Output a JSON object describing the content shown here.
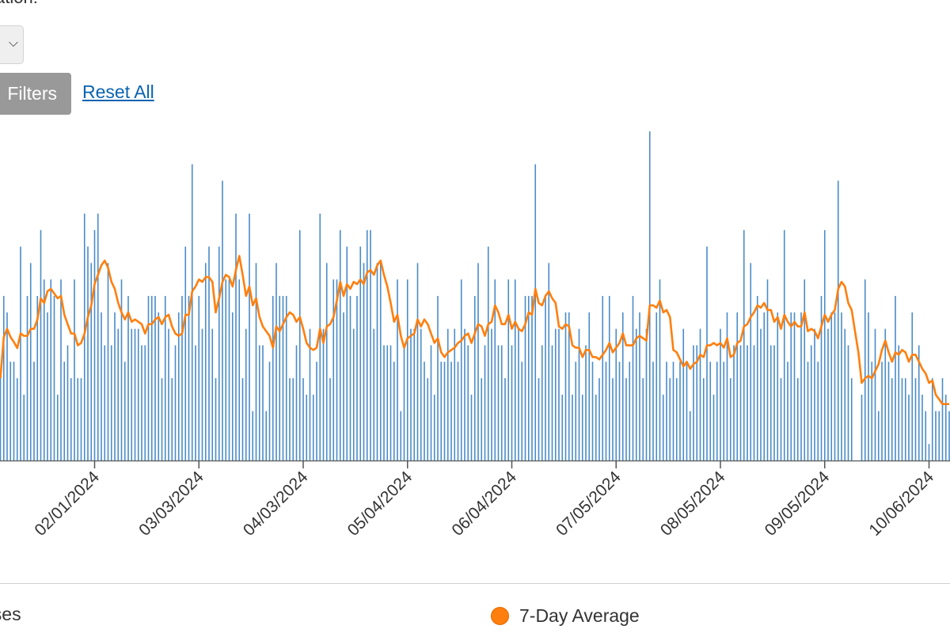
{
  "filters": {
    "cut_label": "ation:",
    "select_chevron_icon": "chevron-down-icon",
    "filters_button": "Filters",
    "reset_link": "Reset All"
  },
  "legend": {
    "cases_label": "ases",
    "average_label": "7-Day Average"
  },
  "colors": {
    "cases": "#4a8cc9",
    "average": "#ff7f0e",
    "axis": "#555555"
  },
  "chart_data": {
    "type": "bar",
    "x_range": [
      "01/04/2024",
      "10/12/2024"
    ],
    "x_step": "1 day",
    "tick_labels": [
      "02/01/2024",
      "03/03/2024",
      "04/03/2024",
      "05/04/2024",
      "06/04/2024",
      "07/05/2024",
      "08/05/2024",
      "09/05/2024",
      "10/06/2024"
    ],
    "ylim": [
      0,
      20
    ],
    "grid": false,
    "legend_placement": "bottom",
    "series": [
      {
        "name": "Cases",
        "type": "bar",
        "values": [
          5,
          10,
          9,
          6,
          6,
          5,
          13,
          4,
          10,
          12,
          6,
          10,
          14,
          11,
          9,
          11,
          10,
          4,
          11,
          6,
          7,
          5,
          11,
          5,
          5,
          15,
          13,
          12,
          14,
          15,
          9,
          7,
          12,
          7,
          9,
          8,
          11,
          6,
          10,
          8,
          8,
          8,
          7,
          7,
          10,
          10,
          10,
          9,
          5,
          10,
          8,
          5,
          7,
          9,
          10,
          13,
          10,
          18,
          7,
          10,
          8,
          12,
          13,
          8,
          5,
          13,
          17,
          11,
          11,
          9,
          15,
          11,
          5,
          8,
          15,
          3,
          12,
          7,
          7,
          3,
          6,
          10,
          12,
          10,
          10,
          10,
          5,
          5,
          7,
          14,
          5,
          4,
          8,
          4,
          6,
          15,
          8,
          12,
          5,
          11,
          11,
          14,
          9,
          13,
          10,
          8,
          10,
          13,
          12,
          14,
          14,
          8,
          12,
          12,
          7,
          7,
          7,
          6,
          11,
          3,
          7,
          11,
          8,
          8,
          12,
          8,
          6,
          5,
          7,
          4,
          10,
          6,
          6,
          8,
          6,
          8,
          6,
          11,
          8,
          7,
          4,
          10,
          12,
          5,
          7,
          13,
          8,
          11,
          7,
          7,
          5,
          11,
          7,
          11,
          8,
          6,
          10,
          10,
          10,
          18,
          5,
          7,
          10,
          12,
          7,
          8,
          8,
          4,
          9,
          9,
          4,
          6,
          8,
          4,
          7,
          9,
          6,
          4,
          5,
          10,
          6,
          10,
          5,
          8,
          6,
          9,
          5,
          6,
          10,
          8,
          9,
          5,
          8,
          20,
          6,
          9,
          11,
          4,
          6,
          5,
          6,
          5,
          6,
          8,
          6,
          3,
          7,
          7,
          8,
          5,
          13,
          6,
          4,
          6,
          8,
          6,
          9,
          5,
          7,
          9,
          7,
          14,
          7,
          12,
          7,
          10,
          8,
          9,
          11,
          7,
          7,
          9,
          5,
          14,
          6,
          9,
          9,
          5,
          9,
          11,
          6,
          7,
          8,
          6,
          10,
          14,
          8,
          9,
          9,
          17,
          9,
          8,
          7,
          5,
          0,
          0,
          4,
          11,
          9,
          6,
          8,
          3,
          6,
          8,
          6,
          5,
          10,
          7,
          5,
          5,
          4,
          9,
          5,
          7,
          4,
          3,
          1,
          5,
          3,
          3,
          5,
          4,
          3
        ]
      },
      {
        "name": "7-Day Average",
        "type": "line",
        "window": 7
      }
    ]
  }
}
